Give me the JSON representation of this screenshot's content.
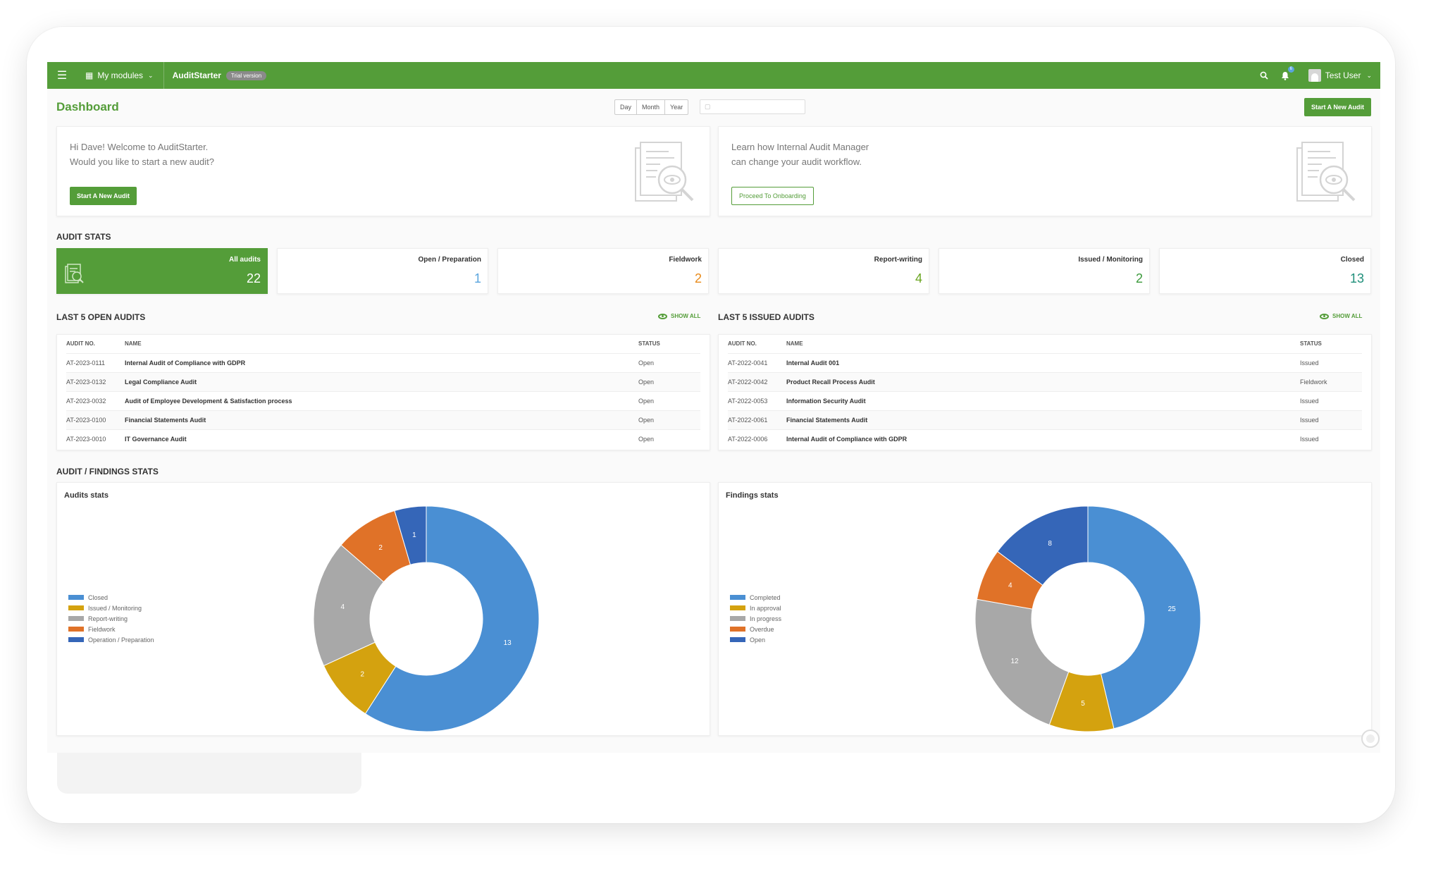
{
  "topbar": {
    "menu_icon": "hamburger-icon",
    "modules_label": "My modules",
    "app_name": "AuditStarter",
    "trial_badge": "Trial version",
    "notification_count": "6",
    "user_name": "Test User"
  },
  "dashboard": {
    "title": "Dashboard",
    "period_options": [
      "Day",
      "Month",
      "Year"
    ],
    "new_audit_button": "Start A New Audit"
  },
  "welcome": {
    "line1": "Hi Dave! Welcome to AuditStarter.",
    "line2": "Would you like to start a new audit?",
    "button": "Start A New Audit"
  },
  "learn": {
    "line1": "Learn how Internal Audit Manager",
    "line2": "can change your audit workflow.",
    "button": "Proceed To Onboarding"
  },
  "audit_stats": {
    "title": "AUDIT STATS",
    "items": [
      {
        "label": "All audits",
        "value": "22",
        "color": "#ffffff"
      },
      {
        "label": "Open / Preparation",
        "value": "1",
        "color": "#5aa5de"
      },
      {
        "label": "Fieldwork",
        "value": "2",
        "color": "#e88a1a"
      },
      {
        "label": "Report-writing",
        "value": "4",
        "color": "#6aa521"
      },
      {
        "label": "Issued / Monitoring",
        "value": "2",
        "color": "#3c9a3c"
      },
      {
        "label": "Closed",
        "value": "13",
        "color": "#1f8f7a"
      }
    ]
  },
  "open_audits": {
    "title": "LAST 5 OPEN AUDITS",
    "show_all": "SHOW ALL",
    "columns": [
      "AUDIT NO.",
      "NAME",
      "STATUS"
    ],
    "rows": [
      {
        "no": "AT-2023-0111",
        "name": "Internal Audit of Compliance with GDPR",
        "status": "Open"
      },
      {
        "no": "AT-2023-0132",
        "name": "Legal Compliance Audit",
        "status": "Open"
      },
      {
        "no": "AT-2023-0032",
        "name": "Audit of Employee Development & Satisfaction process",
        "status": "Open"
      },
      {
        "no": "AT-2023-0100",
        "name": "Financial Statements Audit",
        "status": "Open"
      },
      {
        "no": "AT-2023-0010",
        "name": "IT Governance Audit",
        "status": "Open"
      }
    ]
  },
  "issued_audits": {
    "title": "LAST 5 ISSUED AUDITS",
    "show_all": "SHOW ALL",
    "columns": [
      "AUDIT NO.",
      "NAME",
      "STATUS"
    ],
    "rows": [
      {
        "no": "AT-2022-0041",
        "name": "Internal Audit 001",
        "status": "Issued"
      },
      {
        "no": "AT-2022-0042",
        "name": "Product Recall Process Audit",
        "status": "Fieldwork"
      },
      {
        "no": "AT-2022-0053",
        "name": "Information Security Audit",
        "status": "Issued"
      },
      {
        "no": "AT-2022-0061",
        "name": "Financial Statements Audit",
        "status": "Issued"
      },
      {
        "no": "AT-2022-0006",
        "name": "Internal Audit of Compliance with GDPR",
        "status": "Issued"
      }
    ]
  },
  "findings_section": {
    "title": "AUDIT / FINDINGS STATS"
  },
  "chart_data": [
    {
      "type": "pie",
      "title": "Audits stats",
      "categories": [
        "Closed",
        "Issued / Monitoring",
        "Report-writing",
        "Fieldwork",
        "Operation / Preparation"
      ],
      "values": [
        13,
        2,
        4,
        2,
        1
      ],
      "colors": [
        "#4a8fd3",
        "#d4a20f",
        "#a8a8a8",
        "#e07228",
        "#3566b8"
      ],
      "legend": "left"
    },
    {
      "type": "pie",
      "title": "Findings stats",
      "categories": [
        "Completed",
        "In approval",
        "In progress",
        "Overdue",
        "Open"
      ],
      "values": [
        25,
        5,
        12,
        4,
        8
      ],
      "colors": [
        "#4a8fd3",
        "#d4a20f",
        "#a8a8a8",
        "#e07228",
        "#3566b8"
      ],
      "legend": "left"
    }
  ]
}
